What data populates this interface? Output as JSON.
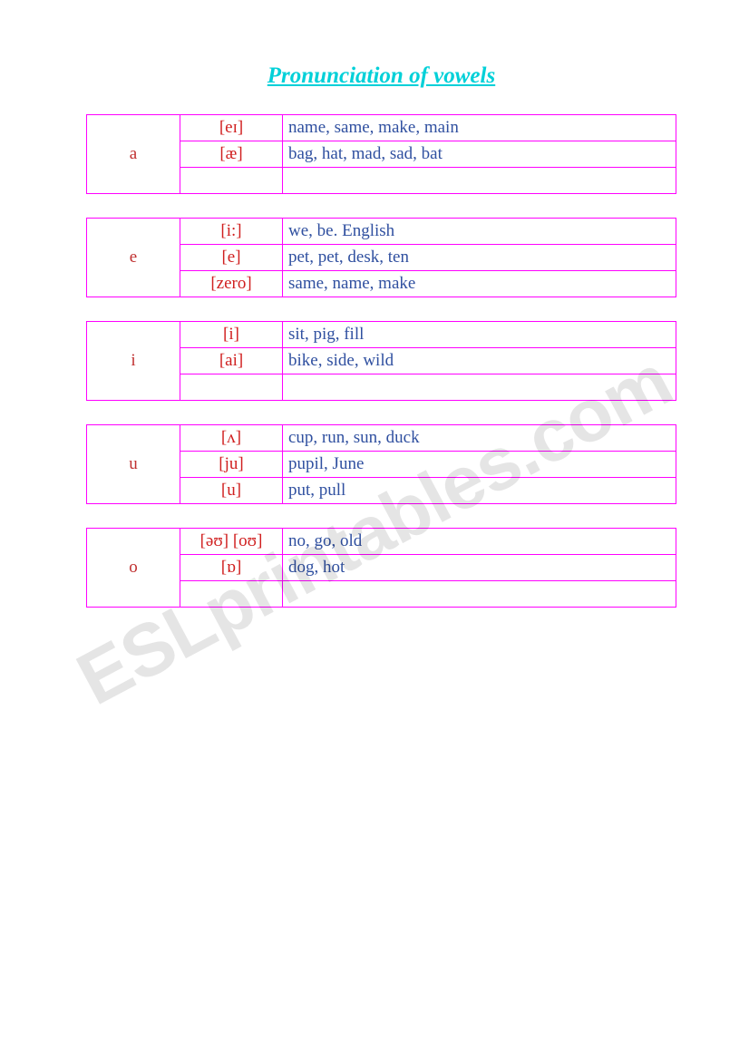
{
  "title": "Pronunciation of vowels",
  "title_color": "#00d0d8",
  "border_color": "#ff00ff",
  "letter_color": "#c03030",
  "ipa_color": "#d02020",
  "example_color": "#3050a0",
  "watermark_text": "ESLprintables.com",
  "tables": [
    {
      "letter": "a",
      "rows": [
        {
          "ipa": "[eɪ]",
          "examples": "name, same, make, main"
        },
        {
          "ipa": "[æ]",
          "examples": "bag, hat, mad, sad, bat"
        },
        {
          "ipa": "",
          "examples": ""
        }
      ]
    },
    {
      "letter": "e",
      "rows": [
        {
          "ipa": "[i:]",
          "examples": "we, be. English"
        },
        {
          "ipa": "[e]",
          "examples": "pet, pet, desk, ten"
        },
        {
          "ipa": "[zero]",
          "examples": "same, name, make"
        }
      ]
    },
    {
      "letter": "i",
      "rows": [
        {
          "ipa": "[i]",
          "examples": "sit, pig, fill"
        },
        {
          "ipa": "[ai]",
          "examples": "bike, side, wild"
        },
        {
          "ipa": "",
          "examples": ""
        }
      ]
    },
    {
      "letter": "u",
      "rows": [
        {
          "ipa": "[ʌ]",
          "examples": "cup, run, sun, duck"
        },
        {
          "ipa": "[ju]",
          "examples": "pupil, June"
        },
        {
          "ipa": "[u]",
          "examples": "put, pull"
        }
      ]
    },
    {
      "letter": "o",
      "rows": [
        {
          "ipa": "[əʊ] [oʊ]",
          "examples": "no, go, old"
        },
        {
          "ipa": "[ɒ]",
          "examples": "dog, hot"
        },
        {
          "ipa": "",
          "examples": ""
        }
      ]
    }
  ]
}
